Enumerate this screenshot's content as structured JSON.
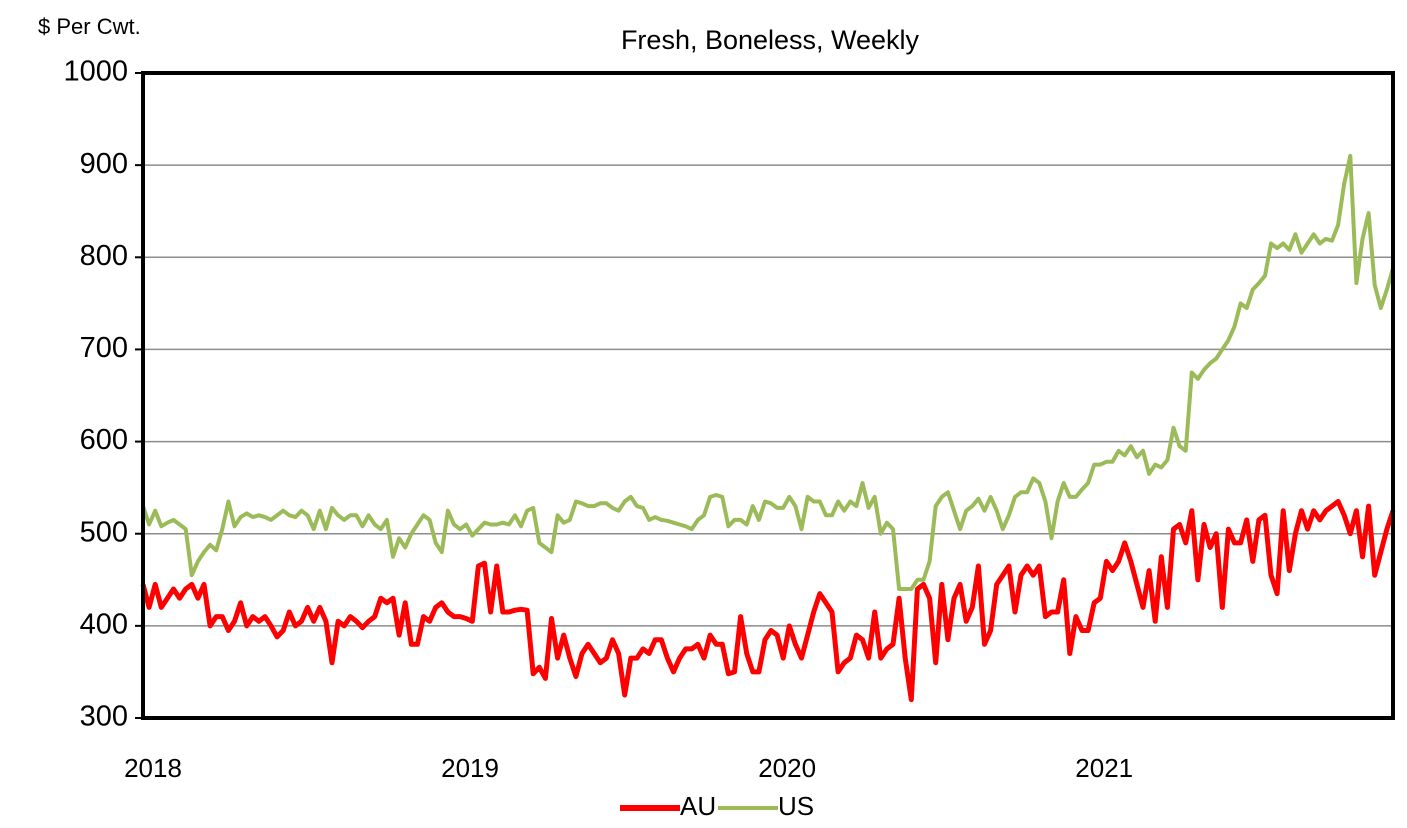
{
  "chart_data": {
    "type": "line",
    "subtitle": "Fresh, Boneless, Weekly",
    "y_label": "$ Per Cwt.",
    "categories": [
      "2018",
      null,
      null,
      null,
      null,
      null,
      null,
      null,
      null,
      null,
      null,
      null,
      null,
      null,
      null,
      null,
      null,
      null,
      null,
      null,
      null,
      null,
      null,
      null,
      null,
      null,
      null,
      null,
      null,
      null,
      null,
      null,
      null,
      null,
      null,
      null,
      null,
      null,
      null,
      null,
      null,
      null,
      null,
      null,
      null,
      null,
      null,
      null,
      null,
      null,
      null,
      null,
      "2019",
      null,
      null,
      null,
      null,
      null,
      null,
      null,
      null,
      null,
      null,
      null,
      null,
      null,
      null,
      null,
      null,
      null,
      null,
      null,
      null,
      null,
      null,
      null,
      null,
      null,
      null,
      null,
      null,
      null,
      null,
      null,
      null,
      null,
      null,
      null,
      null,
      null,
      null,
      null,
      null,
      null,
      null,
      null,
      null,
      null,
      null,
      null,
      null,
      null,
      null,
      null,
      "2020",
      null,
      null,
      null,
      null,
      null,
      null,
      null,
      null,
      null,
      null,
      null,
      null,
      null,
      null,
      null,
      null,
      null,
      null,
      null,
      null,
      null,
      null,
      null,
      null,
      null,
      null,
      null,
      null,
      null,
      null,
      null,
      null,
      null,
      null,
      null,
      null,
      null,
      null,
      null,
      null,
      null,
      null,
      null,
      null,
      null,
      null,
      null,
      null,
      null,
      null,
      null,
      "2021",
      null,
      null,
      null,
      null,
      null,
      null,
      null,
      null,
      null,
      null,
      null,
      null,
      null,
      null,
      null,
      null,
      null,
      null,
      null,
      null,
      null,
      null,
      null,
      null,
      null,
      null,
      null,
      null,
      null,
      null,
      null,
      null,
      null,
      null,
      null,
      null,
      null,
      null,
      null,
      null,
      null,
      null,
      null,
      null,
      null,
      null,
      null,
      null,
      null
    ],
    "series": [
      {
        "name": "AU",
        "color": "#ff0000",
        "values": [
          445,
          420,
          445,
          420,
          430,
          440,
          430,
          440,
          445,
          430,
          445,
          400,
          410,
          410,
          395,
          405,
          425,
          400,
          410,
          405,
          410,
          400,
          388,
          395,
          415,
          400,
          405,
          420,
          405,
          420,
          405,
          360,
          405,
          400,
          410,
          405,
          398,
          405,
          410,
          430,
          425,
          430,
          390,
          425,
          380,
          380,
          410,
          405,
          420,
          425,
          415,
          410,
          410,
          408,
          405,
          465,
          468,
          415,
          465,
          415,
          415,
          417,
          418,
          417,
          348,
          355,
          343,
          408,
          365,
          390,
          365,
          345,
          370,
          380,
          370,
          360,
          365,
          385,
          370,
          325,
          365,
          365,
          375,
          370,
          385,
          385,
          365,
          350,
          365,
          375,
          375,
          380,
          365,
          390,
          380,
          380,
          348,
          350,
          410,
          370,
          350,
          350,
          385,
          395,
          390,
          365,
          400,
          380,
          365,
          390,
          415,
          435,
          425,
          415,
          350,
          360,
          365,
          390,
          385,
          365,
          415,
          365,
          375,
          380,
          430,
          365,
          320,
          440,
          445,
          430,
          360,
          445,
          385,
          430,
          445,
          405,
          420,
          465,
          380,
          395,
          445,
          455,
          465,
          415,
          455,
          465,
          455,
          465,
          410,
          415,
          415,
          450,
          370,
          410,
          395,
          395,
          425,
          430,
          470,
          460,
          470,
          490,
          470,
          445,
          420,
          460,
          405,
          475,
          420,
          505,
          510,
          490,
          525,
          450,
          510,
          485,
          500,
          420,
          505,
          490,
          490,
          515,
          470,
          515,
          520,
          455,
          435,
          525,
          460,
          500,
          525,
          505,
          525,
          515,
          525,
          530,
          535,
          520,
          500,
          525,
          475,
          530,
          455,
          480,
          505,
          525
        ]
      },
      {
        "name": "US",
        "color": "#9bbb59",
        "values": [
          530,
          510,
          525,
          508,
          512,
          515,
          510,
          505,
          455,
          470,
          480,
          488,
          482,
          505,
          535,
          508,
          518,
          522,
          518,
          520,
          518,
          515,
          520,
          525,
          520,
          518,
          525,
          520,
          505,
          525,
          505,
          528,
          520,
          515,
          520,
          520,
          508,
          520,
          510,
          505,
          515,
          475,
          495,
          485,
          500,
          510,
          520,
          515,
          490,
          480,
          525,
          510,
          505,
          510,
          498,
          505,
          512,
          510,
          510,
          512,
          510,
          520,
          508,
          525,
          528,
          490,
          485,
          480,
          520,
          512,
          515,
          535,
          533,
          530,
          530,
          533,
          533,
          528,
          525,
          535,
          540,
          530,
          528,
          515,
          518,
          515,
          514,
          512,
          510,
          508,
          505,
          515,
          520,
          540,
          542,
          540,
          508,
          515,
          515,
          510,
          530,
          515,
          535,
          533,
          528,
          528,
          540,
          530,
          505,
          540,
          535,
          535,
          520,
          520,
          535,
          525,
          535,
          530,
          555,
          528,
          540,
          500,
          512,
          505,
          440,
          440,
          440,
          450,
          450,
          470,
          530,
          540,
          545,
          525,
          505,
          525,
          530,
          538,
          525,
          540,
          525,
          505,
          520,
          540,
          545,
          545,
          560,
          555,
          535,
          495,
          535,
          555,
          540,
          540,
          548,
          555,
          575,
          575,
          578,
          578,
          590,
          585,
          595,
          583,
          590,
          565,
          575,
          572,
          580,
          615,
          595,
          590,
          675,
          668,
          678,
          685,
          690,
          700,
          710,
          725,
          750,
          745,
          765,
          772,
          780,
          815,
          810,
          815,
          808,
          825,
          805,
          815,
          825,
          815,
          820,
          818,
          835,
          880,
          910,
          772,
          820,
          848,
          770,
          745,
          765,
          788
        ]
      }
    ],
    "ylim": [
      300,
      1000
    ],
    "yticks": [
      300,
      400,
      500,
      600,
      700,
      800,
      900,
      1000
    ],
    "grid": true,
    "legend": "bottom"
  }
}
